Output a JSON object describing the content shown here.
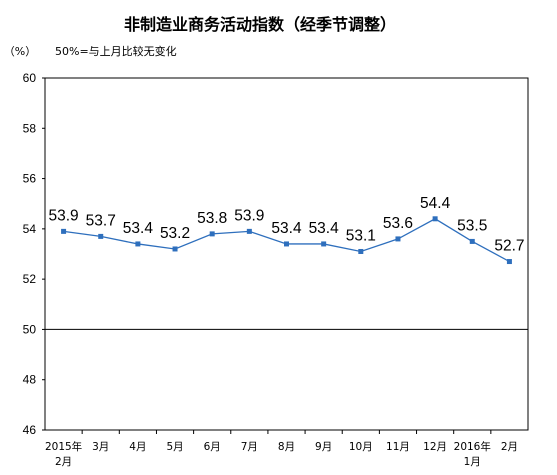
{
  "chart_data": {
    "type": "line",
    "title": "非制造业商务活动指数（经季节调整）",
    "ylabel": "（%）",
    "annotation": "50%=与上月比较无变化",
    "ylim": [
      46,
      60
    ],
    "yticks": [
      "46",
      "48",
      "50",
      "52",
      "54",
      "56",
      "58",
      "60"
    ],
    "reference_line": 50,
    "categories": [
      [
        "2015年",
        "2月"
      ],
      [
        "3月"
      ],
      [
        "4月"
      ],
      [
        "5月"
      ],
      [
        "6月"
      ],
      [
        "7月"
      ],
      [
        "8月"
      ],
      [
        "9月"
      ],
      [
        "10月"
      ],
      [
        "11月"
      ],
      [
        "12月"
      ],
      [
        "2016年",
        "1月"
      ],
      [
        "2月"
      ]
    ],
    "series": [
      {
        "values": [
          53.9,
          53.7,
          53.4,
          53.2,
          53.8,
          53.9,
          53.4,
          53.4,
          53.1,
          53.6,
          54.4,
          53.5,
          52.7
        ],
        "labels": [
          "53.9",
          "53.7",
          "53.4",
          "53.2",
          "53.8",
          "53.9",
          "53.4",
          "53.4",
          "53.1",
          "53.6",
          "54.4",
          "53.5",
          "52.7"
        ],
        "color": "#2e6fbd"
      }
    ]
  }
}
